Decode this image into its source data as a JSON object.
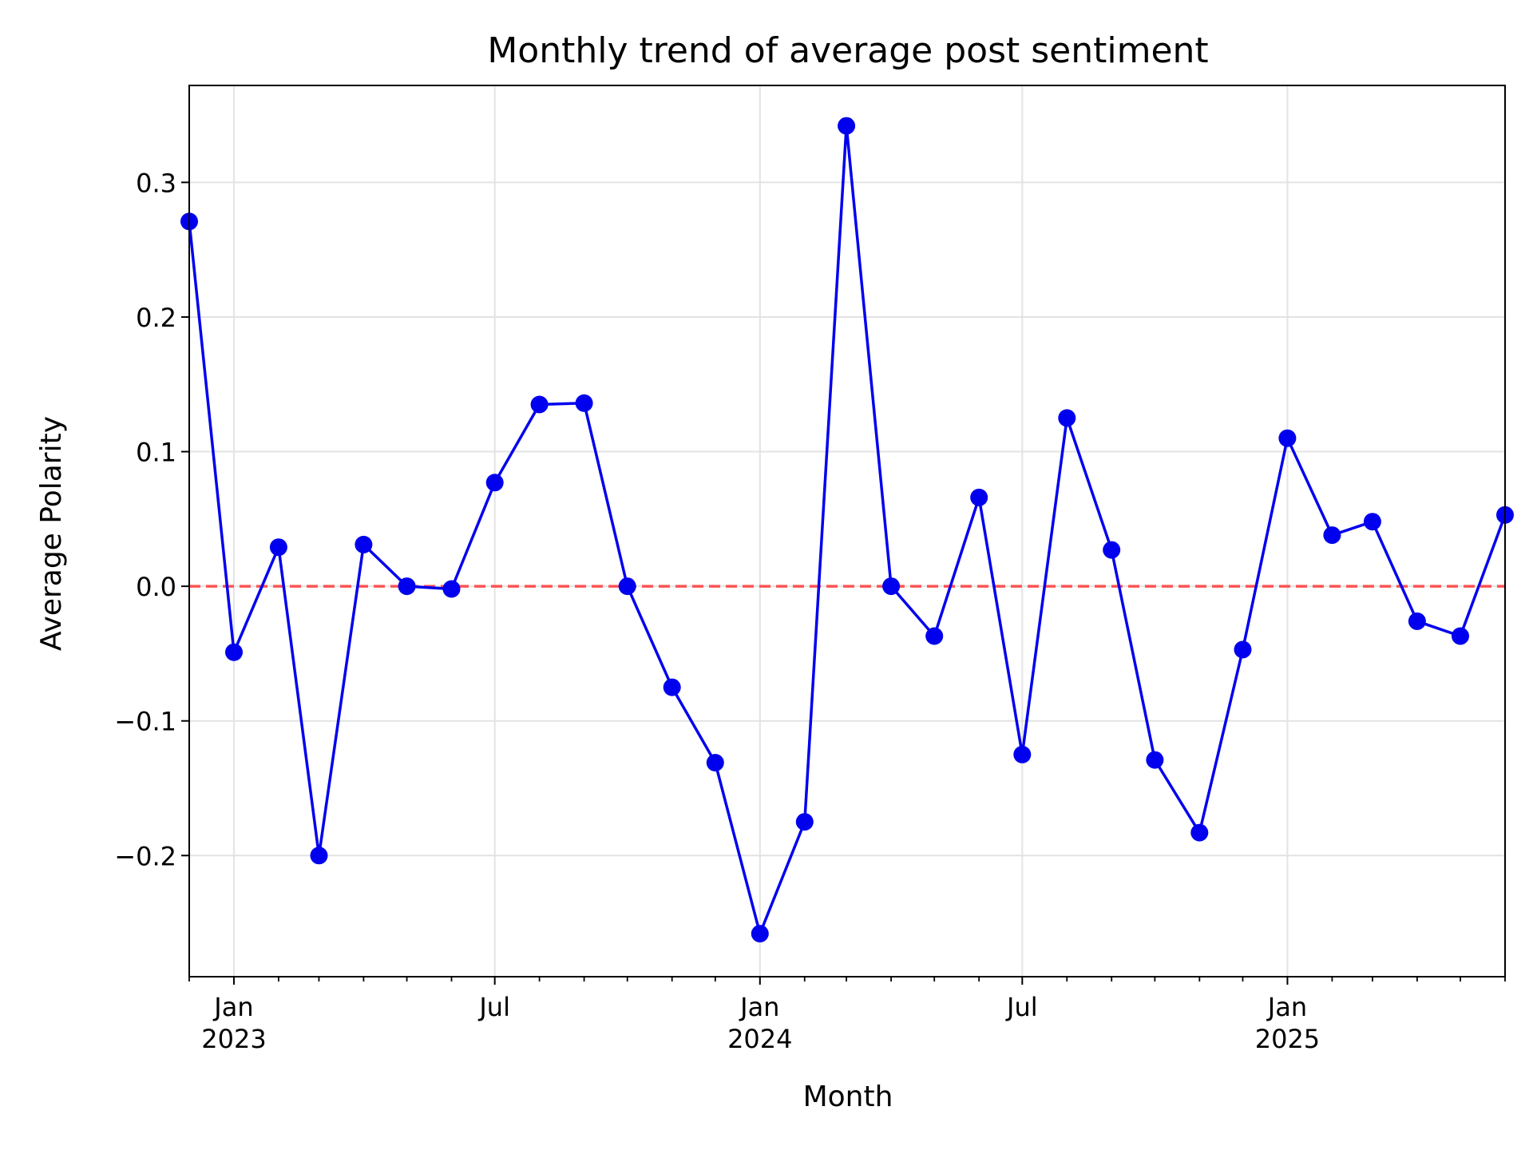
{
  "chart_data": {
    "type": "line",
    "title": "Monthly trend of average post sentiment",
    "xlabel": "Month",
    "ylabel": "Average Polarity",
    "ylim": [
      -0.29,
      0.372
    ],
    "xlim": [
      "2022-12-01",
      "2025-06-01"
    ],
    "yticks": [
      -0.2,
      -0.1,
      0.0,
      0.1,
      0.2,
      0.3
    ],
    "ytick_labels": [
      "−0.2",
      "−0.1",
      "0.0",
      "0.1",
      "0.2",
      "0.3"
    ],
    "xticks_major": [
      {
        "date": "2023-01-01",
        "label": [
          "Jan",
          "2023"
        ]
      },
      {
        "date": "2023-07-01",
        "label": [
          "Jul"
        ]
      },
      {
        "date": "2024-01-01",
        "label": [
          "Jan",
          "2024"
        ]
      },
      {
        "date": "2024-07-01",
        "label": [
          "Jul"
        ]
      },
      {
        "date": "2025-01-01",
        "label": [
          "Jan",
          "2025"
        ]
      }
    ],
    "grid": true,
    "reference_line": {
      "y": 0.0,
      "style": "dashed",
      "color": "#ff4444"
    },
    "series": [
      {
        "color": "#0000ee",
        "x": [
          "2022-12",
          "2023-01",
          "2023-02",
          "2023-03",
          "2023-04",
          "2023-05",
          "2023-06",
          "2023-07",
          "2023-08",
          "2023-09",
          "2023-10",
          "2023-11",
          "2023-12",
          "2024-01",
          "2024-02",
          "2024-03",
          "2024-04",
          "2024-05",
          "2024-06",
          "2024-07",
          "2024-08",
          "2024-09",
          "2024-10",
          "2024-11",
          "2024-12",
          "2025-01",
          "2025-02",
          "2025-03",
          "2025-04",
          "2025-05",
          "2025-06"
        ],
        "values": [
          0.271,
          -0.049,
          0.029,
          -0.2,
          0.031,
          0.0,
          -0.002,
          0.077,
          0.135,
          0.136,
          0.0,
          -0.075,
          -0.131,
          -0.258,
          -0.175,
          0.342,
          0.0,
          -0.037,
          0.066,
          -0.125,
          0.125,
          0.027,
          -0.129,
          -0.183,
          -0.047,
          0.11,
          0.038,
          0.048,
          -0.026,
          -0.037,
          0.053
        ]
      }
    ]
  }
}
